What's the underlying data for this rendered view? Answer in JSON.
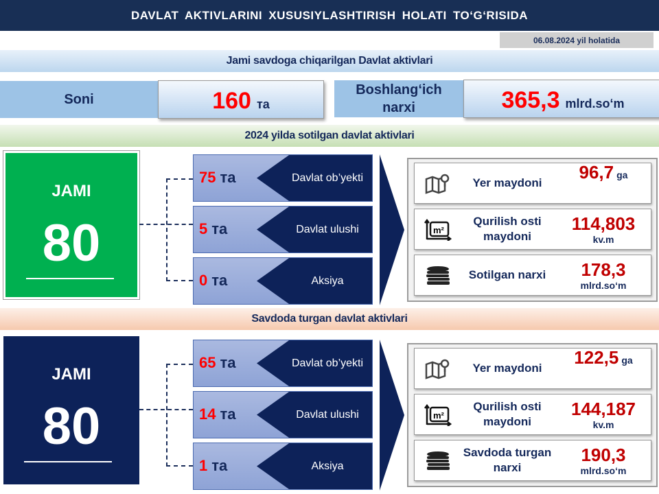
{
  "header": {
    "title": "DAVLAT AKTIVLARINI XUSUSIYLASHTIRISH HOLATI TO‘G‘RISIDA",
    "date": "06.08.2024 yil holatida"
  },
  "total": {
    "title": "Jami savdoga chiqarilgan Davlat aktivlari",
    "count_label": "Soni",
    "count_value": "160",
    "count_unit": "та",
    "price_label": "Boshlang‘ich narxi",
    "price_value": "365,3",
    "price_unit": "mlrd.so‘m"
  },
  "sold": {
    "title": "2024 yilda sotilgan davlat aktivlari",
    "jami_label": "JAMI",
    "jami_value": "80",
    "color": "#00b050",
    "rows": [
      {
        "value": "75",
        "unit": "та",
        "name": "Davlat ob’yekti"
      },
      {
        "value": "5",
        "unit": "та",
        "name": "Davlat ulushi"
      },
      {
        "value": "0",
        "unit": "та",
        "name": "Aksiya"
      }
    ],
    "cards": [
      {
        "icon": "map-pin-icon",
        "name": "Yer maydoni",
        "value": "96,7",
        "unit": "ga"
      },
      {
        "icon": "area-m2-icon",
        "name": "Qurilish osti maydoni",
        "value": "114,803",
        "unit": "kv.m"
      },
      {
        "icon": "coins-icon",
        "name": "Sotilgan narxi",
        "value": "178,3",
        "unit": "mlrd.so‘m"
      }
    ]
  },
  "trading": {
    "title": "Savdoda turgan davlat aktivlari",
    "jami_label": "JAMI",
    "jami_value": "80",
    "color": "#0d2259",
    "rows": [
      {
        "value": "65",
        "unit": "та",
        "name": "Davlat ob’yekti"
      },
      {
        "value": "14",
        "unit": "та",
        "name": "Davlat ulushi"
      },
      {
        "value": "1",
        "unit": "та",
        "name": "Aksiya"
      }
    ],
    "cards": [
      {
        "icon": "map-pin-icon",
        "name": "Yer maydoni",
        "value": "122,5",
        "unit": "ga"
      },
      {
        "icon": "area-m2-icon",
        "name": "Qurilish osti maydoni",
        "value": "144,187",
        "unit": "kv.m"
      },
      {
        "icon": "coins-icon",
        "name": "Savdoda turgan narxi",
        "value": "190,3",
        "unit": "mlrd.so‘m"
      }
    ]
  }
}
